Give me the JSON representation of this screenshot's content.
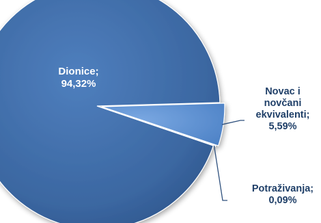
{
  "chart_data": {
    "type": "pie",
    "title": "",
    "categories": [
      "Dionice",
      "Novac i novčani ekvivalenti",
      "Potraživanja"
    ],
    "values": [
      94.32,
      5.59,
      0.09
    ],
    "labels": [
      [
        "Dionice;",
        "94,32%"
      ],
      [
        "Novac i",
        "novčani",
        "ekvivalenti;",
        "5,59%"
      ],
      [
        "Potraživanja;",
        "0,09%"
      ]
    ],
    "colors": [
      "#3c6aa4",
      "#5b8fd2",
      "#4c7cbc"
    ],
    "legend": "none"
  }
}
